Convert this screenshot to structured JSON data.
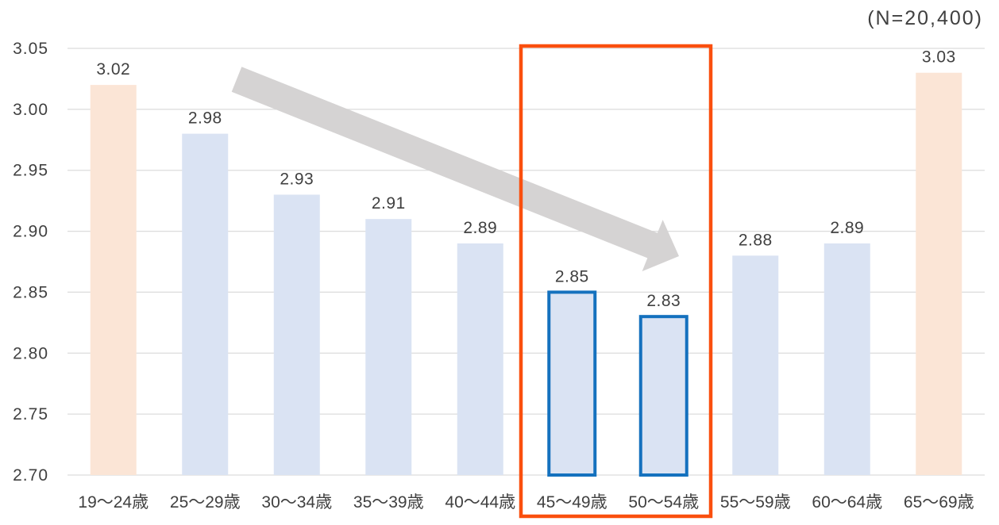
{
  "colors": {
    "bar_fill": "#DAE3F3",
    "bar_accent_fill": "#FBE5D6",
    "highlight_bar_stroke": "#1471BE",
    "highlight_box": "#FA4F0E",
    "arrow": "#D5D3D3",
    "gridline": "#DCDCDC",
    "text": "#404040"
  },
  "chart_data": {
    "type": "bar",
    "title": "",
    "xlabel": "",
    "ylabel": "",
    "annotation": "(N=20,400)",
    "categories": [
      "19〜24歳",
      "25〜29歳",
      "30〜34歳",
      "35〜39歳",
      "40〜44歳",
      "45〜49歳",
      "50〜54歳",
      "55〜59歳",
      "60〜64歳",
      "65〜69歳"
    ],
    "values": [
      3.02,
      2.98,
      2.93,
      2.91,
      2.89,
      2.85,
      2.83,
      2.88,
      2.89,
      3.03
    ],
    "value_labels": [
      "3.02",
      "2.98",
      "2.93",
      "2.91",
      "2.89",
      "2.85",
      "2.83",
      "2.88",
      "2.89",
      "3.03"
    ],
    "ylim": [
      2.7,
      3.05
    ],
    "ytick_step": 0.05,
    "ytick_labels": [
      "2.70",
      "2.75",
      "2.80",
      "2.85",
      "2.90",
      "2.95",
      "3.00",
      "3.05"
    ],
    "grid": true,
    "legend": false,
    "accent_indices": [
      0,
      9
    ],
    "highlighted_indices": [
      5,
      6
    ]
  }
}
